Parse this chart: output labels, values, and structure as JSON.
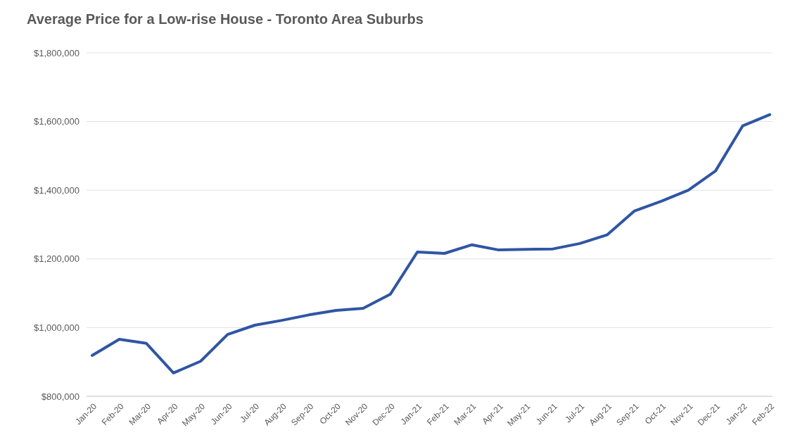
{
  "chart_data": {
    "type": "line",
    "title": "Average Price for a Low-rise House - Toronto Area Suburbs",
    "categories": [
      "Jan-20",
      "Feb-20",
      "Mar-20",
      "Apr-20",
      "May-20",
      "Jun-20",
      "Jul-20",
      "Aug-20",
      "Sep-20",
      "Oct-20",
      "Nov-20",
      "Dec-20",
      "Jan-21",
      "Feb-21",
      "Mar-21",
      "Apr-21",
      "May-21",
      "Jun-21",
      "Jul-21",
      "Aug-21",
      "Sep-21",
      "Oct-21",
      "Nov-21",
      "Dec-21",
      "Jan-22",
      "Feb-22"
    ],
    "series": [
      {
        "color": "#2f55a4",
        "values": [
          919000,
          966000,
          954000,
          868000,
          902000,
          980000,
          1007000,
          1021000,
          1037000,
          1050000,
          1056000,
          1097000,
          1220000,
          1216000,
          1241000,
          1226000,
          1228000,
          1229000,
          1245000,
          1270000,
          1339000,
          1368000,
          1400000,
          1456000,
          1587000,
          1620000
        ]
      }
    ],
    "ylim": [
      800000,
      1800000
    ],
    "yticks": [
      {
        "value": 800000,
        "label": "$800,000"
      },
      {
        "value": 1000000,
        "label": "$1,000,000"
      },
      {
        "value": 1200000,
        "label": "$1,200,000"
      },
      {
        "value": 1400000,
        "label": "$1,400,000"
      },
      {
        "value": 1600000,
        "label": "$1,600,000"
      },
      {
        "value": 1800000,
        "label": "$1,800,000"
      }
    ],
    "grid": "y",
    "marker": "none",
    "line_style": "solid"
  }
}
